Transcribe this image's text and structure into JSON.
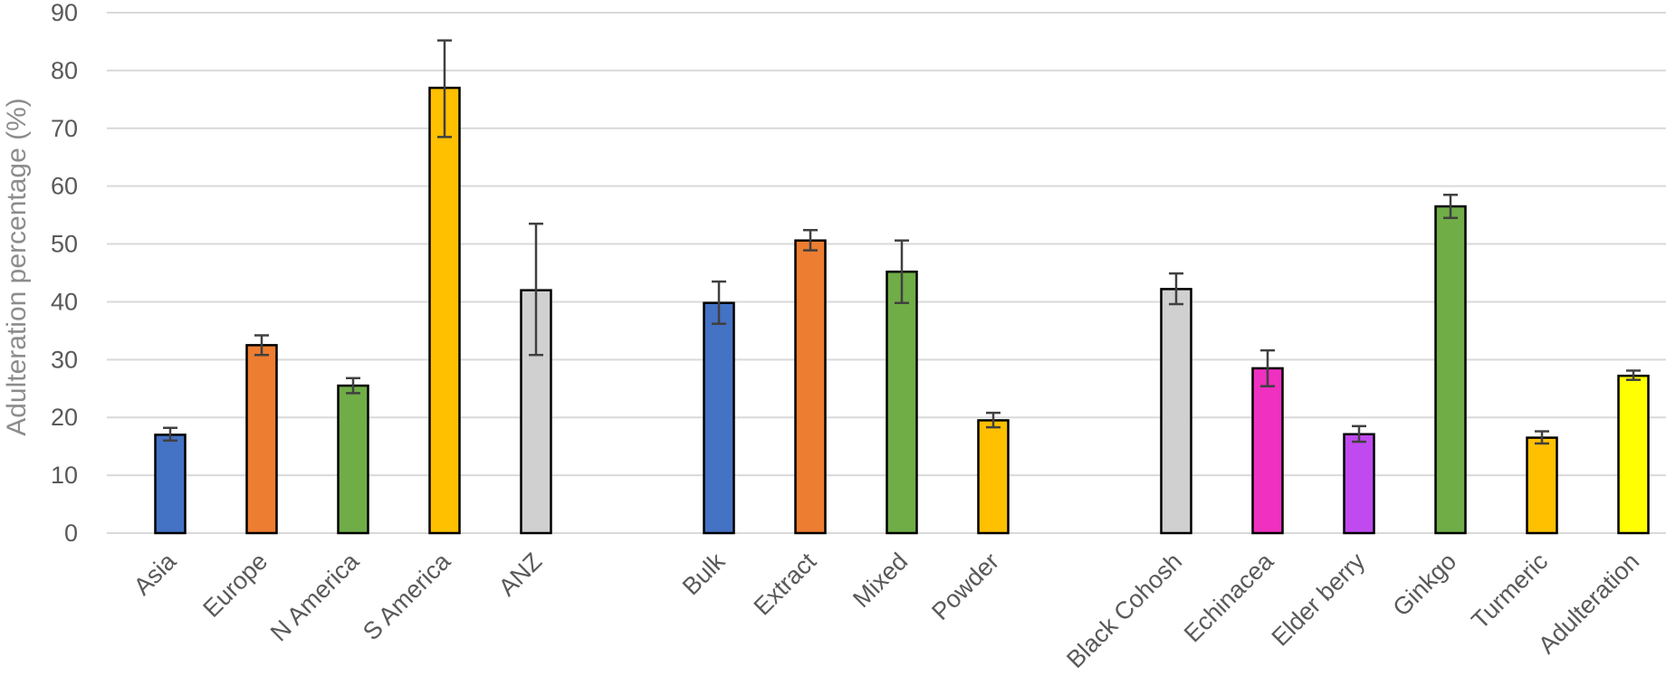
{
  "chart_data": {
    "type": "bar",
    "title": "",
    "xlabel": "",
    "ylabel": "Adulteration percentage (%)",
    "ylim": [
      0,
      90
    ],
    "yticks": [
      0,
      10,
      20,
      30,
      40,
      50,
      60,
      70,
      80,
      90
    ],
    "grid": true,
    "legend": "none",
    "groups": [
      {
        "categories": [
          "Asia",
          "Europe",
          "N America",
          "S America",
          "ANZ"
        ],
        "values": [
          17,
          32.5,
          25.5,
          77,
          42
        ],
        "error_low": [
          16,
          30.8,
          24.2,
          68.5,
          30.8
        ],
        "error_high": [
          18.2,
          34.2,
          26.8,
          85.2,
          53.5
        ],
        "colors": [
          "#4472c4",
          "#ed7d31",
          "#70ad47",
          "#ffc000",
          "#d0d0d0"
        ]
      },
      {
        "categories": [
          "Bulk",
          "Extract",
          "Mixed",
          "Powder"
        ],
        "values": [
          39.8,
          50.6,
          45.2,
          19.5
        ],
        "error_low": [
          36.2,
          48.9,
          39.8,
          18.3
        ],
        "error_high": [
          43.5,
          52.4,
          50.6,
          20.8
        ],
        "colors": [
          "#4472c4",
          "#ed7d31",
          "#70ad47",
          "#ffc000"
        ]
      },
      {
        "categories": [
          "Black Cohosh",
          "Echinacea",
          "Elder berry",
          "Ginkgo",
          "Turmeric",
          "Adulteration"
        ],
        "values": [
          42.2,
          28.5,
          17.1,
          56.5,
          16.5,
          27.2
        ],
        "error_low": [
          39.6,
          25.4,
          15.8,
          54.5,
          15.5,
          26.5
        ],
        "error_high": [
          44.9,
          31.6,
          18.5,
          58.5,
          17.6,
          28.1
        ],
        "colors": [
          "#d0d0d0",
          "#f030c0",
          "#c04af0",
          "#70ad47",
          "#ffc000",
          "#ffff00"
        ]
      }
    ]
  }
}
